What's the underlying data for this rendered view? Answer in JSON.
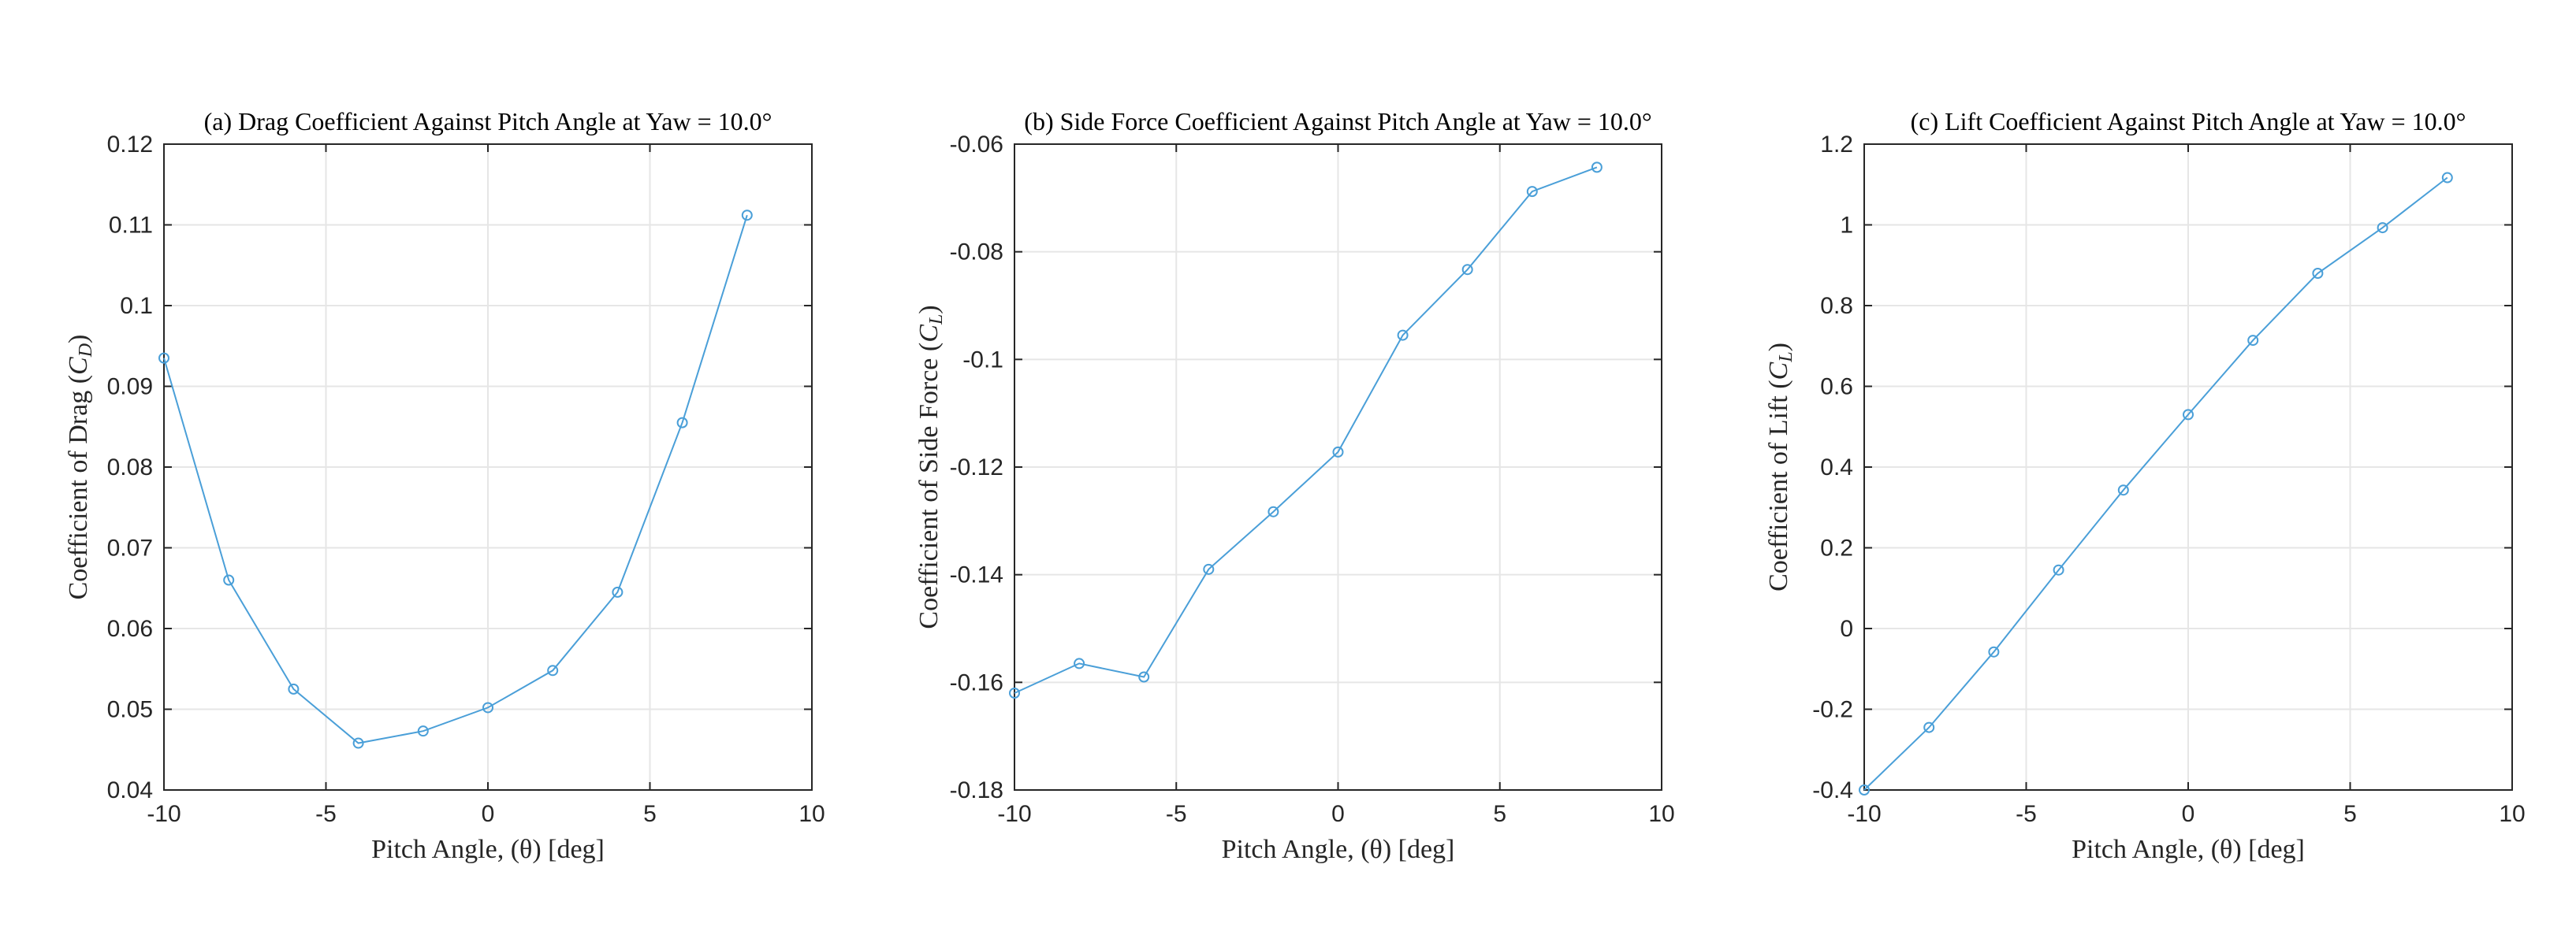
{
  "colors": {
    "series": "#4a9fd8",
    "axis": "#262626",
    "grid": "#e6e6e6"
  },
  "chart_data": [
    {
      "type": "line",
      "title": "(a) Drag Coefficient Against Pitch Angle at Yaw = 10.0°",
      "xlabel": "Pitch Angle, (θ) [deg]",
      "ylabel": "Coefficient of Drag (C_D)",
      "xlim": [
        -10,
        10
      ],
      "ylim": [
        0.04,
        0.12
      ],
      "xticks": [
        -10,
        -5,
        0,
        5,
        10
      ],
      "yticks": [
        0.04,
        0.05,
        0.06,
        0.07,
        0.08,
        0.09,
        0.1,
        0.11,
        0.12
      ],
      "x": [
        -10,
        -8,
        -6,
        -4,
        -2,
        0,
        2,
        4,
        6,
        8
      ],
      "y": [
        0.0935,
        0.066,
        0.0525,
        0.0458,
        0.0473,
        0.0502,
        0.0548,
        0.0645,
        0.0855,
        0.1112
      ],
      "grid": true,
      "marker": "circle"
    },
    {
      "type": "line",
      "title": "(b) Side Force Coefficient Against Pitch Angle at Yaw = 10.0°",
      "xlabel": "Pitch Angle, (θ) [deg]",
      "ylabel": "Coefficient of Side Force (C_L)",
      "xlim": [
        -10,
        10
      ],
      "ylim": [
        -0.18,
        -0.06
      ],
      "xticks": [
        -10,
        -5,
        0,
        5,
        10
      ],
      "yticks": [
        -0.18,
        -0.16,
        -0.14,
        -0.12,
        -0.1,
        -0.08,
        -0.06
      ],
      "x": [
        -10,
        -8,
        -6,
        -4,
        -2,
        0,
        2,
        4,
        6,
        8
      ],
      "y": [
        -0.162,
        -0.1565,
        -0.159,
        -0.139,
        -0.1283,
        -0.1172,
        -0.0955,
        -0.0833,
        -0.0688,
        -0.0643
      ],
      "grid": true,
      "marker": "circle"
    },
    {
      "type": "line",
      "title": "(c) Lift Coefficient Against Pitch Angle at Yaw = 10.0°",
      "xlabel": "Pitch Angle, (θ) [deg]",
      "ylabel": "Coefficient of Lift (C_L)",
      "xlim": [
        -10,
        10
      ],
      "ylim": [
        -0.4,
        1.2
      ],
      "xticks": [
        -10,
        -5,
        0,
        5,
        10
      ],
      "yticks": [
        -0.4,
        -0.2,
        0,
        0.2,
        0.4,
        0.6,
        0.8,
        1,
        1.2
      ],
      "x": [
        -10,
        -8,
        -6,
        -4,
        -2,
        0,
        2,
        4,
        6,
        8
      ],
      "y": [
        -0.4,
        -0.245,
        -0.058,
        0.145,
        0.343,
        0.53,
        0.714,
        0.88,
        0.993,
        1.117
      ],
      "grid": true,
      "marker": "circle"
    }
  ]
}
